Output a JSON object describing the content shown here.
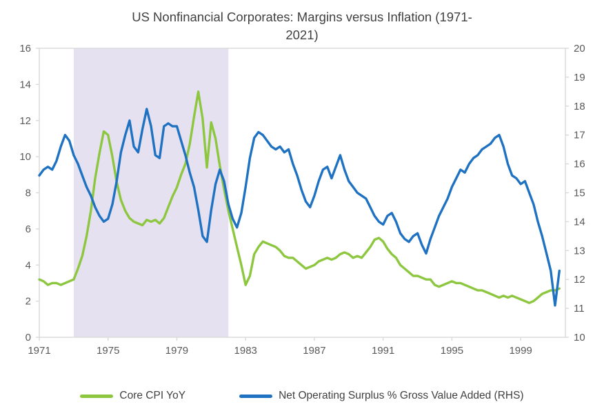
{
  "title": {
    "lines": [
      "US Nonfinancial Corporates: Margins versus Inflation (1971-",
      "2021)"
    ]
  },
  "legend": {
    "items": [
      {
        "label": "Core CPI YoY"
      },
      {
        "label": "Net Operating Surplus % Gross Value Added (RHS)"
      }
    ]
  },
  "colors": {
    "axis_line": "#d9d9d9",
    "tick_text": "#595959",
    "title_text": "#404040",
    "green": "#8dc63f",
    "blue": "#1f72c2",
    "band": "#e6e1f1"
  },
  "chart_data": {
    "type": "line",
    "title": "US Nonfinancial Corporates: Margins versus Inflation (1971-2021)",
    "xlabel": "",
    "ylabel_left": "",
    "ylabel_right": "",
    "x_start": 1971.0,
    "x_step": 0.25,
    "x_range": [
      1971,
      2001.6
    ],
    "x_ticks": [
      1971,
      1975,
      1979,
      1983,
      1987,
      1991,
      1995,
      1999
    ],
    "left_axis": {
      "min": 0,
      "max": 16,
      "ticks": [
        0,
        2,
        4,
        6,
        8,
        10,
        12,
        14,
        16
      ]
    },
    "right_axis": {
      "min": 10,
      "max": 20,
      "ticks": [
        10,
        11,
        12,
        13,
        14,
        15,
        16,
        17,
        18,
        19,
        20
      ]
    },
    "shaded_band": {
      "x0": 1973,
      "x1": 1982,
      "color": "#e6e1f1"
    },
    "grid": false,
    "legend_position": "bottom",
    "series": [
      {
        "name": "Core CPI YoY",
        "axis": "left",
        "color": "#8dc63f",
        "values": [
          3.2,
          3.1,
          2.9,
          3.0,
          3.0,
          2.9,
          3.0,
          3.1,
          3.2,
          3.8,
          4.5,
          5.6,
          7.0,
          8.8,
          10.2,
          11.4,
          11.2,
          10.0,
          8.6,
          7.6,
          7.0,
          6.6,
          6.4,
          6.3,
          6.2,
          6.5,
          6.4,
          6.5,
          6.3,
          6.6,
          7.2,
          7.8,
          8.3,
          9.0,
          9.6,
          10.7,
          12.2,
          13.6,
          12.1,
          9.4,
          11.9,
          11.0,
          9.5,
          8.2,
          7.0,
          6.0,
          5.0,
          4.0,
          2.9,
          3.4,
          4.6,
          5.0,
          5.3,
          5.2,
          5.1,
          5.0,
          4.8,
          4.5,
          4.4,
          4.4,
          4.2,
          4.0,
          3.8,
          3.9,
          4.0,
          4.2,
          4.3,
          4.4,
          4.3,
          4.4,
          4.6,
          4.7,
          4.6,
          4.4,
          4.5,
          4.4,
          4.7,
          5.0,
          5.4,
          5.5,
          5.3,
          4.9,
          4.6,
          4.4,
          4.0,
          3.8,
          3.6,
          3.4,
          3.4,
          3.3,
          3.2,
          3.2,
          2.9,
          2.8,
          2.9,
          3.0,
          3.1,
          3.0,
          3.0,
          2.9,
          2.8,
          2.7,
          2.6,
          2.6,
          2.5,
          2.4,
          2.3,
          2.2,
          2.3,
          2.2,
          2.3,
          2.2,
          2.1,
          2.0,
          1.9,
          2.0,
          2.2,
          2.4,
          2.5,
          2.6,
          2.6,
          2.7
        ]
      },
      {
        "name": "Net Operating Surplus % Gross Value Added (RHS)",
        "axis": "right",
        "color": "#1f72c2",
        "values": [
          15.6,
          15.8,
          15.9,
          15.8,
          16.1,
          16.6,
          17.0,
          16.8,
          16.3,
          16.0,
          15.6,
          15.2,
          14.9,
          14.5,
          14.2,
          14.0,
          14.1,
          14.6,
          15.4,
          16.4,
          17.0,
          17.5,
          16.6,
          16.4,
          17.2,
          17.9,
          17.3,
          16.3,
          16.2,
          17.3,
          17.4,
          17.3,
          17.3,
          16.8,
          16.3,
          15.7,
          15.2,
          14.4,
          13.5,
          13.3,
          14.4,
          15.3,
          15.8,
          15.4,
          14.6,
          14.1,
          13.8,
          14.3,
          15.2,
          16.2,
          16.9,
          17.1,
          17.0,
          16.8,
          16.6,
          16.5,
          16.6,
          16.4,
          16.5,
          16.0,
          15.6,
          15.1,
          14.7,
          14.5,
          14.9,
          15.4,
          15.8,
          15.9,
          15.5,
          15.9,
          16.3,
          15.8,
          15.4,
          15.2,
          15.0,
          14.9,
          14.8,
          14.5,
          14.2,
          14.0,
          13.9,
          14.2,
          14.3,
          14.0,
          13.6,
          13.4,
          13.3,
          13.5,
          13.6,
          13.2,
          12.9,
          13.4,
          13.8,
          14.2,
          14.5,
          14.8,
          15.2,
          15.5,
          15.8,
          15.7,
          16.0,
          16.2,
          16.3,
          16.5,
          16.6,
          16.7,
          16.9,
          17.0,
          16.6,
          16.0,
          15.6,
          15.5,
          15.3,
          15.4,
          15.0,
          14.6,
          14.0,
          13.5,
          12.9,
          12.3,
          11.1,
          12.3
        ]
      }
    ]
  }
}
